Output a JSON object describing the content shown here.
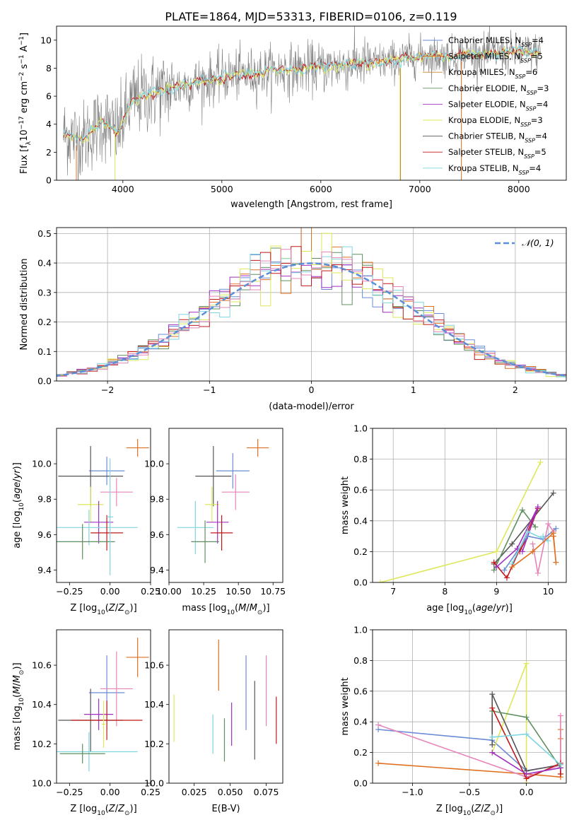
{
  "title": "PLATE=1864, MJD=53313, FIBERID=0106, z=0.119",
  "colors": {
    "chabrier_miles": "#6b8bd6",
    "salpeter_miles": "#e07020",
    "kroupa_miles": "#c8882c",
    "chabrier_elodie": "#5f8f5f",
    "salpeter_elodie": "#a030c0",
    "kroupa_elodie": "#dde85a",
    "chabrier_stelib": "#555555",
    "salpeter_stelib": "#c01818",
    "kroupa_stelib": "#7fd6e0",
    "pink": "#e683b8",
    "gaussian": "#5b8fd8",
    "grid": "#b0b0b0"
  },
  "chart_data": [
    {
      "type": "line",
      "xlabel": "wavelength [Angstrom, rest frame]",
      "ylabel": "Flux [f",
      "ylabel_parts": [
        "Flux [f",
        "λ",
        "10",
        "−17",
        " erg cm",
        "−2",
        " s",
        "−1",
        " A",
        "−1",
        "]"
      ],
      "xlim": [
        3330,
        8480
      ],
      "ylim": [
        0,
        11
      ],
      "xticks": [
        4000,
        5000,
        6000,
        7000,
        8000
      ],
      "yticks": [
        0,
        2,
        4,
        6,
        8,
        10
      ],
      "grid": false,
      "legend_position": "top-right",
      "series": [
        {
          "name": "Chabrier MILES, N",
          "sub": "SSP",
          "suffix": "=4",
          "color_key": "chabrier_miles"
        },
        {
          "name": "Salpeter MILES, N",
          "sub": "SSP",
          "suffix": "=5",
          "color_key": "salpeter_miles"
        },
        {
          "name": "Kroupa MILES, N",
          "sub": "SSP",
          "suffix": "=6",
          "color_key": "kroupa_miles"
        },
        {
          "name": "Chabrier ELODIE, N",
          "sub": "SSP",
          "suffix": "=3",
          "color_key": "chabrier_elodie"
        },
        {
          "name": "Salpeter ELODIE, N",
          "sub": "SSP",
          "suffix": "=4",
          "color_key": "salpeter_elodie"
        },
        {
          "name": "Kroupa ELODIE, N",
          "sub": "SSP",
          "suffix": "=3",
          "color_key": "kroupa_elodie"
        },
        {
          "name": "Chabrier STELIB, N",
          "sub": "SSP",
          "suffix": "=4",
          "color_key": "chabrier_stelib"
        },
        {
          "name": "Salpeter STELIB, N",
          "sub": "SSP",
          "suffix": "=5",
          "color_key": "salpeter_stelib"
        },
        {
          "name": "Kroupa STELIB, N",
          "sub": "SSP",
          "suffix": "=4",
          "color_key": "kroupa_stelib"
        }
      ],
      "continuum": {
        "x": [
          3400,
          3600,
          3800,
          3950,
          4100,
          4300,
          4500,
          4700,
          4900,
          5100,
          5300,
          5500,
          5700,
          5900,
          6100,
          6300,
          6500,
          6700,
          6900,
          7100,
          7300,
          7500,
          7700,
          7900,
          8100,
          8200
        ],
        "y": [
          3.3,
          2.9,
          4.2,
          3.4,
          5.8,
          6.2,
          6.6,
          6.9,
          7.2,
          7.5,
          7.6,
          7.8,
          7.9,
          8.0,
          8.1,
          8.3,
          8.4,
          8.5,
          8.8,
          8.9,
          8.8,
          9.0,
          9.0,
          9.1,
          9.1,
          9.1
        ]
      },
      "spikes": [
        {
          "x": 3530,
          "y0": 2.5,
          "y1": 0,
          "color_key": "salpeter_miles"
        },
        {
          "x": 3920,
          "y0": 3.5,
          "y1": 0,
          "color_key": "kroupa_elodie"
        },
        {
          "x": 6800,
          "y0": 8.0,
          "y1": 0,
          "color_key": "kroupa_elodie"
        },
        {
          "x": 6805,
          "y0": 8.0,
          "y1": 0,
          "color_key": "kroupa_miles"
        },
        {
          "x": 7420,
          "y0": 8.5,
          "y1": 0,
          "color_key": "salpeter_miles"
        }
      ]
    },
    {
      "type": "bar",
      "xlabel": "(data-model)/error",
      "ylabel": "Normed distribution",
      "xlim": [
        -2.5,
        2.5
      ],
      "ylim": [
        0,
        0.52
      ],
      "xticks": [
        -2,
        -1,
        0,
        1,
        2
      ],
      "yticks": [
        0.0,
        0.1,
        0.2,
        0.3,
        0.4,
        0.5
      ],
      "grid": true,
      "legend_position": "top-right",
      "gaussian_label": "𝒩(0, 1)",
      "bin_width": 0.1,
      "histogram_series": [
        "chabrier_miles",
        "salpeter_miles",
        "chabrier_elodie",
        "salpeter_elodie",
        "kroupa_elodie",
        "salpeter_stelib",
        "kroupa_stelib",
        "pink"
      ]
    },
    {
      "type": "scatter",
      "xlabel": "Z [log10(Z/Z⊙)]",
      "ylabel": "age  [log10(age/yr)]",
      "xlim": [
        -0.33,
        0.25
      ],
      "ylim": [
        9.33,
        10.2
      ],
      "xticks": [
        -0.25,
        0.0,
        0.25
      ],
      "yticks": [
        9.4,
        9.6,
        9.8,
        10.0
      ],
      "points": [
        {
          "x": 0.17,
          "y": 10.09,
          "xerr": 0.07,
          "yerr": 0.05,
          "color_key": "salpeter_miles"
        },
        {
          "x": -0.02,
          "y": 9.96,
          "xerr": 0.11,
          "yerr": 0.08,
          "color_key": "chabrier_miles"
        },
        {
          "x": -0.12,
          "y": 9.93,
          "xerr": 0.2,
          "yerr": 0.17,
          "color_key": "chabrier_stelib"
        },
        {
          "x": 0.04,
          "y": 9.84,
          "xerr": 0.1,
          "yerr": 0.08,
          "color_key": "pink"
        },
        {
          "x": -0.12,
          "y": 9.77,
          "xerr": 0.08,
          "yerr": 0.1,
          "color_key": "kroupa_elodie"
        },
        {
          "x": -0.07,
          "y": 9.67,
          "xerr": 0.09,
          "yerr": 0.12,
          "color_key": "salpeter_elodie"
        },
        {
          "x": -0.13,
          "y": 9.64,
          "xerr": 0.3,
          "yerr": 0.1,
          "color_key": "kroupa_stelib"
        },
        {
          "x": -0.02,
          "y": 9.61,
          "xerr": 0.1,
          "yerr": 0.1,
          "color_key": "salpeter_stelib"
        },
        {
          "x": -0.17,
          "y": 9.56,
          "xerr": 0.2,
          "yerr": 0.1,
          "color_key": "chabrier_elodie"
        },
        {
          "x": -0.0,
          "y": 9.7,
          "xerr": 0.02,
          "yerr": 0.33,
          "color_key": "kroupa_stelib"
        }
      ]
    },
    {
      "type": "scatter",
      "xlabel": "mass [log10(M/M⊙)]",
      "ylabel": "",
      "xlim": [
        10.0,
        10.82
      ],
      "ylim": [
        9.33,
        10.2
      ],
      "xticks": [
        10.0,
        10.25,
        10.5,
        10.75
      ],
      "xtick_labels": [
        "10.00",
        "10.25",
        "10.50",
        "10.75"
      ],
      "yticks": [
        9.4,
        9.6,
        9.8,
        10.0
      ],
      "points": [
        {
          "x": 10.64,
          "y": 10.09,
          "xerr": 0.08,
          "yerr": 0.05,
          "color_key": "salpeter_miles"
        },
        {
          "x": 10.46,
          "y": 9.96,
          "xerr": 0.12,
          "yerr": 0.1,
          "color_key": "chabrier_miles"
        },
        {
          "x": 10.32,
          "y": 9.93,
          "xerr": 0.13,
          "yerr": 0.17,
          "color_key": "chabrier_stelib"
        },
        {
          "x": 10.48,
          "y": 9.84,
          "xerr": 0.1,
          "yerr": 0.1,
          "color_key": "pink"
        },
        {
          "x": 10.31,
          "y": 9.77,
          "xerr": 0.05,
          "yerr": 0.1,
          "color_key": "kroupa_elodie"
        },
        {
          "x": 10.35,
          "y": 9.67,
          "xerr": 0.08,
          "yerr": 0.12,
          "color_key": "salpeter_elodie"
        },
        {
          "x": 10.19,
          "y": 9.64,
          "xerr": 0.13,
          "yerr": 0.15,
          "color_key": "kroupa_stelib"
        },
        {
          "x": 10.38,
          "y": 9.61,
          "xerr": 0.08,
          "yerr": 0.1,
          "color_key": "salpeter_stelib"
        },
        {
          "x": 10.26,
          "y": 9.56,
          "xerr": 0.1,
          "yerr": 0.12,
          "color_key": "chabrier_elodie"
        }
      ]
    },
    {
      "type": "line",
      "xlabel": "age  [log10(age/yr)]",
      "ylabel": "mass weight",
      "xlim": [
        6.6,
        10.35
      ],
      "ylim": [
        0,
        1.0
      ],
      "xticks": [
        7,
        8,
        9,
        10
      ],
      "yticks": [
        0.0,
        0.2,
        0.4,
        0.6,
        0.8,
        1.0
      ],
      "grid": true,
      "series": [
        {
          "color_key": "kroupa_elodie",
          "x": [
            6.75,
            9.0,
            9.85
          ],
          "y": [
            0.0,
            0.2,
            0.78
          ]
        },
        {
          "color_key": "chabrier_stelib",
          "x": [
            8.95,
            9.3,
            10.1
          ],
          "y": [
            0.12,
            0.25,
            0.58
          ]
        },
        {
          "color_key": "chabrier_elodie",
          "x": [
            8.95,
            9.5,
            9.75
          ],
          "y": [
            0.08,
            0.47,
            0.36
          ]
        },
        {
          "color_key": "salpeter_stelib",
          "x": [
            8.95,
            9.2,
            9.8,
            9.6,
            9.45
          ],
          "y": [
            0.13,
            0.03,
            0.48,
            0.3,
            0.2
          ]
        },
        {
          "color_key": "salpeter_elodie",
          "x": [
            9.0,
            9.4,
            9.8,
            9.5
          ],
          "y": [
            0.1,
            0.22,
            0.49,
            0.2
          ]
        },
        {
          "color_key": "chabrier_miles",
          "x": [
            9.15,
            9.6,
            9.9,
            10.15
          ],
          "y": [
            0.08,
            0.3,
            0.28,
            0.35
          ]
        },
        {
          "color_key": "kroupa_stelib",
          "x": [
            9.3,
            9.6,
            10.0,
            9.9
          ],
          "y": [
            0.12,
            0.33,
            0.27,
            0.3
          ]
        },
        {
          "color_key": "pink",
          "x": [
            9.7,
            9.8,
            10.0,
            10.1
          ],
          "y": [
            0.25,
            0.06,
            0.38,
            0.33
          ]
        },
        {
          "color_key": "salpeter_miles",
          "x": [
            9.3,
            9.7,
            10.1,
            10.15,
            10.1
          ],
          "y": [
            0.1,
            0.2,
            0.32,
            0.13,
            0.3
          ]
        }
      ]
    },
    {
      "type": "scatter",
      "xlabel": "Z [log10(Z/Z⊙)]",
      "ylabel": "mass [log10(M/M⊙)]",
      "xlim": [
        -0.33,
        0.25
      ],
      "ylim": [
        10.0,
        10.78
      ],
      "xticks": [
        -0.25,
        0.0,
        0.25
      ],
      "yticks": [
        10.0,
        10.2,
        10.4,
        10.6
      ],
      "points": [
        {
          "x": 0.17,
          "y": 10.64,
          "xerr": 0.07,
          "yerr": 0.1,
          "color_key": "salpeter_miles"
        },
        {
          "x": -0.02,
          "y": 10.46,
          "xerr": 0.11,
          "yerr": 0.19,
          "color_key": "chabrier_miles"
        },
        {
          "x": -0.12,
          "y": 10.32,
          "xerr": 0.2,
          "yerr": 0.16,
          "color_key": "chabrier_stelib"
        },
        {
          "x": 0.04,
          "y": 10.48,
          "xerr": 0.1,
          "yerr": 0.19,
          "color_key": "pink"
        },
        {
          "x": -0.07,
          "y": 10.35,
          "xerr": 0.09,
          "yerr": 0.08,
          "color_key": "salpeter_elodie"
        },
        {
          "x": -0.02,
          "y": 10.32,
          "xerr": 0.22,
          "yerr": 0.1,
          "color_key": "salpeter_stelib"
        },
        {
          "x": -0.13,
          "y": 10.16,
          "xerr": 0.3,
          "yerr": 0.1,
          "color_key": "kroupa_stelib"
        },
        {
          "x": -0.17,
          "y": 10.15,
          "xerr": 0.14,
          "yerr": 0.05,
          "color_key": "chabrier_elodie"
        },
        {
          "x": -0.04,
          "y": 10.3,
          "xerr": 0.01,
          "yerr": 0.12,
          "color_key": "kroupa_elodie"
        }
      ]
    },
    {
      "type": "scatter",
      "xlabel": "E(B-V)",
      "ylabel": "",
      "xlim": [
        0.0075,
        0.0865
      ],
      "ylim": [
        10.0,
        10.78
      ],
      "xticks": [
        0.025,
        0.05,
        0.075
      ],
      "xtick_labels": [
        "0.025",
        "0.050",
        "0.075"
      ],
      "yticks": [
        10.0,
        10.2,
        10.4,
        10.6
      ],
      "points": [
        {
          "x": 0.011,
          "y": 10.33,
          "yerr": 0.12,
          "color_key": "kroupa_elodie"
        },
        {
          "x": 0.038,
          "y": 10.25,
          "yerr": 0.1,
          "color_key": "kroupa_stelib"
        },
        {
          "x": 0.042,
          "y": 10.6,
          "yerr": 0.13,
          "color_key": "salpeter_miles"
        },
        {
          "x": 0.046,
          "y": 10.22,
          "yerr": 0.11,
          "color_key": "chabrier_elodie"
        },
        {
          "x": 0.051,
          "y": 10.3,
          "yerr": 0.11,
          "color_key": "salpeter_elodie"
        },
        {
          "x": 0.061,
          "y": 10.46,
          "yerr": 0.19,
          "color_key": "chabrier_miles"
        },
        {
          "x": 0.067,
          "y": 10.32,
          "yerr": 0.2,
          "color_key": "chabrier_stelib"
        },
        {
          "x": 0.075,
          "y": 10.47,
          "yerr": 0.18,
          "color_key": "pink"
        },
        {
          "x": 0.082,
          "y": 10.32,
          "yerr": 0.12,
          "color_key": "salpeter_stelib"
        }
      ]
    },
    {
      "type": "line",
      "xlabel": "Z [log10(Z/Z⊙)]",
      "ylabel": "mass weight",
      "xlim": [
        -1.35,
        0.35
      ],
      "ylim": [
        0,
        1.0
      ],
      "xticks": [
        -1.0,
        -0.5,
        0.0
      ],
      "xtick_labels": [
        "−1.0",
        "−0.5",
        "0.0"
      ],
      "yticks": [
        0.0,
        0.2,
        0.4,
        0.6,
        0.8,
        1.0
      ],
      "grid": true,
      "series": [
        {
          "color_key": "salpeter_miles",
          "x": [
            -1.3,
            0.0,
            0.3,
            0.3,
            0.3
          ],
          "y": [
            0.13,
            0.06,
            0.04,
            0.35,
            0.29
          ]
        },
        {
          "color_key": "chabrier_miles",
          "x": [
            -1.3,
            -0.3,
            0.0,
            0.3
          ],
          "y": [
            0.35,
            0.28,
            0.08,
            0.12
          ]
        },
        {
          "color_key": "pink",
          "x": [
            -1.3,
            0.0,
            0.3,
            0.3
          ],
          "y": [
            0.38,
            0.04,
            0.12,
            0.44
          ]
        },
        {
          "color_key": "kroupa_elodie",
          "x": [
            -0.3,
            0.0,
            0.0
          ],
          "y": [
            0.2,
            0.78,
            0.0
          ]
        },
        {
          "color_key": "chabrier_stelib",
          "x": [
            -0.3,
            -0.3,
            0.0,
            0.3
          ],
          "y": [
            0.25,
            0.58,
            0.08,
            0.12
          ]
        },
        {
          "color_key": "chabrier_elodie",
          "x": [
            -0.3,
            0.0,
            0.3
          ],
          "y": [
            0.47,
            0.43,
            0.1
          ]
        },
        {
          "color_key": "salpeter_stelib",
          "x": [
            -0.3,
            0.0,
            0.3,
            0.3
          ],
          "y": [
            0.49,
            0.03,
            0.13,
            0.06
          ]
        },
        {
          "color_key": "salpeter_elodie",
          "x": [
            -0.3,
            0.0,
            0.3
          ],
          "y": [
            0.2,
            0.06,
            0.1
          ]
        },
        {
          "color_key": "kroupa_stelib",
          "x": [
            -0.3,
            0.0,
            0.3
          ],
          "y": [
            0.3,
            0.32,
            0.12
          ]
        }
      ]
    }
  ]
}
